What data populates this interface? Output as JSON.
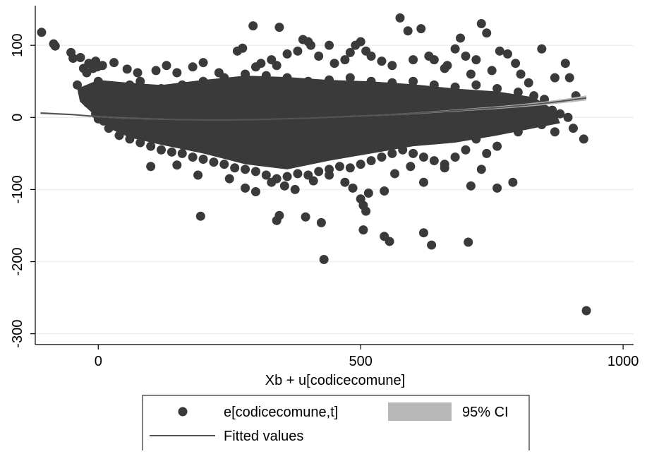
{
  "chart_data": {
    "type": "scatter",
    "xlabel": "Xb + u[codicecomune]",
    "ylabel": "",
    "xlim": [
      -120,
      1020
    ],
    "ylim": [
      -315,
      155
    ],
    "x_ticks": [
      0,
      500,
      1000
    ],
    "y_ticks": [
      100,
      0,
      -100,
      -200,
      -300
    ],
    "x_tick_labels": [
      "0",
      "500",
      "1000"
    ],
    "y_tick_labels": [
      "100",
      "0",
      "-100",
      "-200",
      "-300"
    ],
    "grid": "horizontal",
    "legend_position": "bottom",
    "legend": {
      "scatter_label": "e[codicecomune,t]",
      "ci_label": "95% CI",
      "fit_label": "Fitted values"
    },
    "colors": {
      "points": "#3a3a3a",
      "fit_line": "#545454",
      "ci_band": "#b8b8b8",
      "grid": "#e9eef1"
    },
    "series": [
      {
        "name": "e[codicecomune,t]",
        "type": "scatter",
        "points": [
          [
            -108,
            118
          ],
          [
            -85,
            102
          ],
          [
            -82,
            99
          ],
          [
            -52,
            90
          ],
          [
            -48,
            82
          ],
          [
            -34,
            83
          ],
          [
            -28,
            68
          ],
          [
            -22,
            62
          ],
          [
            -18,
            75
          ],
          [
            -10,
            68
          ],
          [
            -5,
            78
          ],
          [
            -2,
            70
          ],
          [
            8,
            72
          ],
          [
            30,
            76
          ],
          [
            55,
            67
          ],
          [
            75,
            62
          ],
          [
            110,
            65
          ],
          [
            130,
            72
          ],
          [
            150,
            62
          ],
          [
            180,
            70
          ],
          [
            200,
            76
          ],
          [
            230,
            62
          ],
          [
            265,
            92
          ],
          [
            275,
            96
          ],
          [
            295,
            127
          ],
          [
            300,
            70
          ],
          [
            310,
            75
          ],
          [
            330,
            80
          ],
          [
            340,
            72
          ],
          [
            345,
            125
          ],
          [
            360,
            88
          ],
          [
            380,
            92
          ],
          [
            390,
            108
          ],
          [
            400,
            105
          ],
          [
            405,
            100
          ],
          [
            420,
            85
          ],
          [
            440,
            100
          ],
          [
            450,
            75
          ],
          [
            470,
            80
          ],
          [
            480,
            90
          ],
          [
            490,
            100
          ],
          [
            500,
            105
          ],
          [
            510,
            92
          ],
          [
            520,
            85
          ],
          [
            540,
            78
          ],
          [
            560,
            72
          ],
          [
            575,
            138
          ],
          [
            590,
            120
          ],
          [
            600,
            80
          ],
          [
            615,
            123
          ],
          [
            630,
            85
          ],
          [
            640,
            80
          ],
          [
            660,
            68
          ],
          [
            665,
            72
          ],
          [
            680,
            95
          ],
          [
            690,
            110
          ],
          [
            700,
            85
          ],
          [
            710,
            60
          ],
          [
            720,
            80
          ],
          [
            730,
            130
          ],
          [
            740,
            117
          ],
          [
            750,
            65
          ],
          [
            765,
            92
          ],
          [
            780,
            88
          ],
          [
            795,
            75
          ],
          [
            805,
            60
          ],
          [
            820,
            48
          ],
          [
            845,
            95
          ],
          [
            870,
            55
          ],
          [
            890,
            75
          ],
          [
            898,
            55
          ],
          [
            910,
            30
          ],
          [
            -40,
            45
          ],
          [
            -30,
            35
          ],
          [
            -20,
            20
          ],
          [
            -15,
            40
          ],
          [
            0,
            50
          ],
          [
            20,
            40
          ],
          [
            40,
            35
          ],
          [
            60,
            45
          ],
          [
            80,
            50
          ],
          [
            120,
            40
          ],
          [
            160,
            45
          ],
          [
            200,
            50
          ],
          [
            240,
            55
          ],
          [
            280,
            60
          ],
          [
            320,
            58
          ],
          [
            360,
            55
          ],
          [
            400,
            50
          ],
          [
            440,
            52
          ],
          [
            480,
            55
          ],
          [
            520,
            50
          ],
          [
            560,
            48
          ],
          [
            600,
            50
          ],
          [
            640,
            45
          ],
          [
            680,
            42
          ],
          [
            720,
            45
          ],
          [
            760,
            40
          ],
          [
            800,
            35
          ],
          [
            830,
            30
          ],
          [
            850,
            25
          ],
          [
            865,
            10
          ],
          [
            880,
            5
          ],
          [
            895,
            0
          ],
          [
            905,
            -15
          ],
          [
            870,
            -20
          ],
          [
            845,
            -10
          ],
          [
            820,
            -5
          ],
          [
            800,
            -20
          ],
          [
            780,
            -15
          ],
          [
            760,
            -40
          ],
          [
            740,
            -50
          ],
          [
            720,
            -30
          ],
          [
            700,
            -45
          ],
          [
            680,
            -55
          ],
          [
            660,
            -65
          ],
          [
            640,
            -60
          ],
          [
            620,
            -55
          ],
          [
            600,
            -50
          ],
          [
            580,
            -45
          ],
          [
            560,
            -50
          ],
          [
            540,
            -55
          ],
          [
            520,
            -60
          ],
          [
            500,
            -65
          ],
          [
            480,
            -70
          ],
          [
            460,
            -68
          ],
          [
            440,
            -72
          ],
          [
            420,
            -75
          ],
          [
            400,
            -80
          ],
          [
            380,
            -78
          ],
          [
            360,
            -82
          ],
          [
            340,
            -85
          ],
          [
            320,
            -80
          ],
          [
            300,
            -75
          ],
          [
            280,
            -72
          ],
          [
            260,
            -70
          ],
          [
            240,
            -65
          ],
          [
            220,
            -62
          ],
          [
            200,
            -58
          ],
          [
            180,
            -55
          ],
          [
            160,
            -50
          ],
          [
            140,
            -48
          ],
          [
            120,
            -45
          ],
          [
            100,
            -40
          ],
          [
            80,
            -35
          ],
          [
            60,
            -30
          ],
          [
            40,
            -25
          ],
          [
            20,
            -15
          ],
          [
            10,
            -5
          ],
          [
            0,
            -2
          ],
          [
            -5,
            5
          ],
          [
            100,
            -68
          ],
          [
            150,
            -66
          ],
          [
            190,
            -80
          ],
          [
            250,
            -85
          ],
          [
            280,
            -98
          ],
          [
            300,
            -103
          ],
          [
            330,
            -90
          ],
          [
            355,
            -95
          ],
          [
            375,
            -100
          ],
          [
            410,
            -88
          ],
          [
            440,
            -80
          ],
          [
            470,
            -90
          ],
          [
            485,
            -98
          ],
          [
            500,
            -113
          ],
          [
            505,
            -122
          ],
          [
            510,
            -130
          ],
          [
            515,
            -105
          ],
          [
            545,
            -102
          ],
          [
            565,
            -78
          ],
          [
            595,
            -68
          ],
          [
            620,
            -90
          ],
          [
            660,
            -70
          ],
          [
            710,
            -95
          ],
          [
            730,
            -72
          ],
          [
            760,
            -98
          ],
          [
            790,
            -90
          ],
          [
            195,
            -137
          ],
          [
            340,
            -143
          ],
          [
            345,
            -136
          ],
          [
            395,
            -138
          ],
          [
            425,
            -146
          ],
          [
            505,
            -156
          ],
          [
            545,
            -165
          ],
          [
            555,
            -172
          ],
          [
            620,
            -160
          ],
          [
            635,
            -177
          ],
          [
            705,
            -173
          ],
          [
            430,
            -197
          ],
          [
            925,
            -30
          ],
          [
            930,
            -268
          ]
        ]
      },
      {
        "name": "Fitted values",
        "type": "line",
        "x": [
          -110,
          -50,
          0,
          50,
          100,
          150,
          200,
          250,
          300,
          350,
          400,
          450,
          500,
          550,
          600,
          650,
          700,
          750,
          800,
          850,
          900,
          930
        ],
        "y": [
          6,
          4,
          1,
          -1,
          -2,
          -3,
          -3.5,
          -3.5,
          -3,
          -2,
          -1,
          0.5,
          2,
          3.5,
          5.5,
          8,
          10.5,
          13,
          16,
          19.5,
          24,
          27
        ]
      },
      {
        "name": "95% CI",
        "type": "area",
        "x": [
          -110,
          -50,
          0,
          50,
          100,
          150,
          200,
          250,
          300,
          350,
          400,
          450,
          500,
          550,
          600,
          650,
          700,
          750,
          800,
          850,
          900,
          930
        ],
        "lower": [
          4.5,
          3,
          0,
          -2,
          -3,
          -3.8,
          -4.2,
          -4.2,
          -3.7,
          -2.7,
          -1.7,
          -0.3,
          1.1,
          2.5,
          4.3,
          6.6,
          9,
          11.2,
          13.9,
          17,
          21,
          23.5
        ],
        "upper": [
          7.5,
          5,
          2,
          0,
          -1,
          -2.2,
          -2.8,
          -2.8,
          -2.3,
          -1.3,
          -0.3,
          1.3,
          2.9,
          4.5,
          6.7,
          9.4,
          12,
          14.8,
          18.1,
          22,
          27,
          30.5
        ]
      }
    ]
  }
}
